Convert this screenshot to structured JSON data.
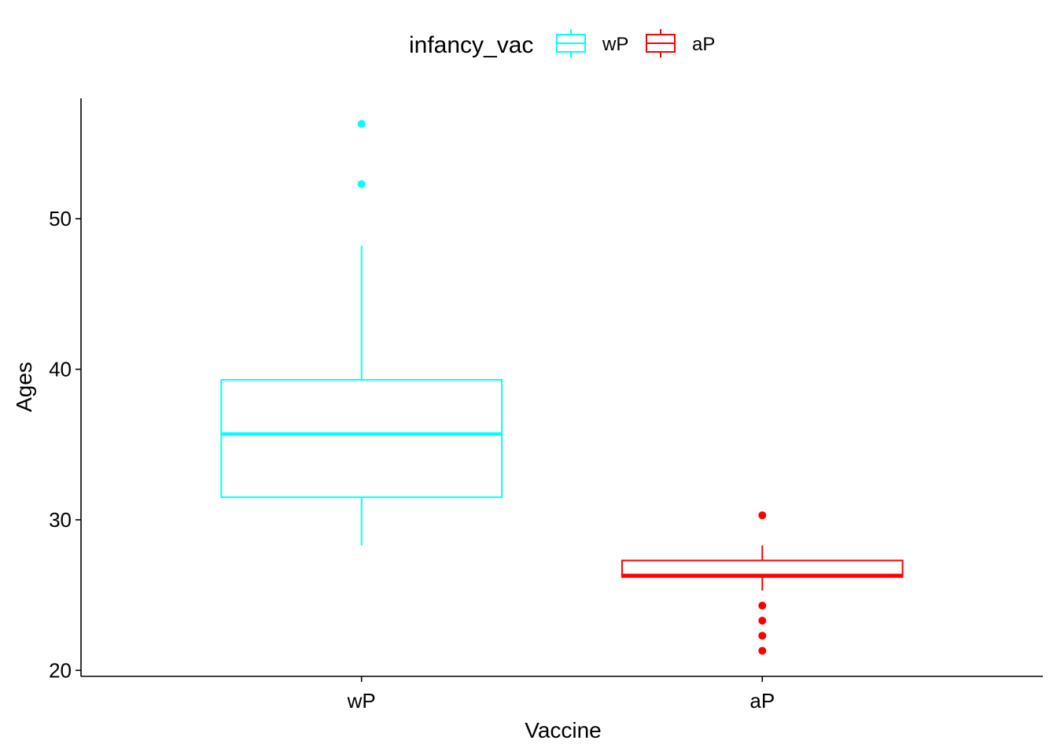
{
  "chart_data": {
    "type": "boxplot",
    "xlabel": "Vaccine",
    "ylabel": "Ages",
    "ylim": [
      19.6,
      58.0
    ],
    "yticks": [
      20,
      30,
      40,
      50
    ],
    "categories": [
      "wP",
      "aP"
    ],
    "grid": false,
    "legend": {
      "title": "infancy_vac",
      "position": "top",
      "entries": [
        {
          "label": "wP",
          "color": "#00FFFF"
        },
        {
          "label": "aP",
          "color": "#FF0000"
        }
      ]
    },
    "series": [
      {
        "category": "wP",
        "color": "#00FFFF",
        "whisker_low": 28.3,
        "q1": 31.5,
        "median": 35.7,
        "q3": 39.3,
        "whisker_high": 48.2,
        "outliers": [
          52.3,
          56.3
        ]
      },
      {
        "category": "aP",
        "color": "#FF0000",
        "whisker_low": 25.3,
        "q1": 26.2,
        "median": 26.3,
        "q3": 27.3,
        "whisker_high": 28.3,
        "outliers": [
          30.3,
          24.3,
          23.3,
          22.3,
          21.3
        ]
      }
    ]
  }
}
